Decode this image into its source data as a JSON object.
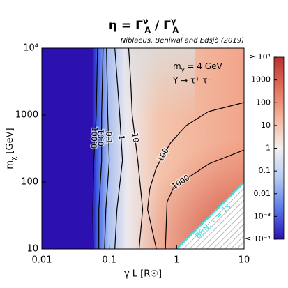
{
  "chart_data": {
    "type": "contour",
    "title": [
      "η = Γ",
      "ν",
      "A",
      " / Γ",
      "γ",
      "A"
    ],
    "subtitle": "Niblaeus, Beniwal and Edsjö (2019)",
    "x_label": "γ L [R☉]",
    "y_label": [
      "m",
      "χ",
      " [GeV]"
    ],
    "annotations": {
      "mass": [
        "m",
        "γ",
        " = 4 GeV"
      ],
      "channel": "Υ → τ⁺ τ⁻",
      "bbn": "BBN, τ = 1s"
    },
    "log_x": true,
    "log_y": true,
    "xlim": [
      0.01,
      10
    ],
    "xticks": [
      0.01,
      0.1,
      1,
      10
    ],
    "ylim": [
      10,
      10000
    ],
    "yticks": [
      10,
      100,
      1000,
      {
        "value": 10000,
        "label": "10⁴"
      }
    ],
    "series": [
      {
        "name": "0.001",
        "color": "#000000",
        "x": [
          0.058,
          0.057,
          0.059,
          0.064,
          0.067
        ],
        "values": [
          10,
          39,
          210,
          1000,
          10000
        ]
      },
      {
        "name": "0.01",
        "color": "#000000",
        "x": [
          0.07,
          0.07,
          0.077,
          0.077,
          0.081
        ],
        "values": [
          10,
          39,
          210,
          1000,
          10000
        ]
      },
      {
        "name": "0.1",
        "color": "#000000",
        "x": [
          0.085,
          0.089,
          0.1,
          0.095,
          0.091
        ],
        "values": [
          10,
          39,
          210,
          1000,
          10000
        ]
      },
      {
        "name": "1",
        "color": "#000000",
        "x": [
          0.121,
          0.13,
          0.157,
          0.143,
          0.121
        ],
        "values": [
          10,
          39,
          210,
          1000,
          10000
        ]
      },
      {
        "name": "10",
        "color": "#000000",
        "x": [
          0.277,
          0.313,
          0.265,
          0.219,
          0.209,
          0.194
        ],
        "values": [
          10,
          39,
          210,
          1000,
          2940,
          10000
        ]
      },
      {
        "name": "100",
        "color": "#000000",
        "x": [
          0.5,
          0.37,
          0.4,
          0.5,
          0.81,
          1.39,
          2.98,
          10
        ],
        "values": [
          10,
          39,
          80,
          165,
          383,
          698,
          1130,
          1540
        ]
      },
      {
        "name": "1000",
        "color": "#000000",
        "x": [
          0.68,
          0.72,
          0.91,
          1.46,
          2.98,
          10
        ],
        "values": [
          10,
          50,
          85,
          115,
          186,
          301
        ]
      }
    ],
    "bbn_line": {
      "color": "#40e0e0",
      "x": [
        1,
        10
      ],
      "values": [
        10,
        98
      ]
    },
    "colorbar": {
      "colormap": [
        "#b83030",
        "#e2705a",
        "#f4b49c",
        "#f2f0f0",
        "#b4caf0",
        "#5a78e8",
        "#2a10b0"
      ],
      "zlim": [
        0.0001,
        10000
      ],
      "zticks": [
        {
          "value": 10000,
          "label": "≥ 10⁴"
        },
        1000,
        100,
        10,
        1,
        0.1,
        0.01,
        {
          "value": 0.001,
          "label": "10⁻³"
        },
        {
          "value": 0.0001,
          "label": "≤ 10⁻⁴"
        }
      ]
    }
  }
}
